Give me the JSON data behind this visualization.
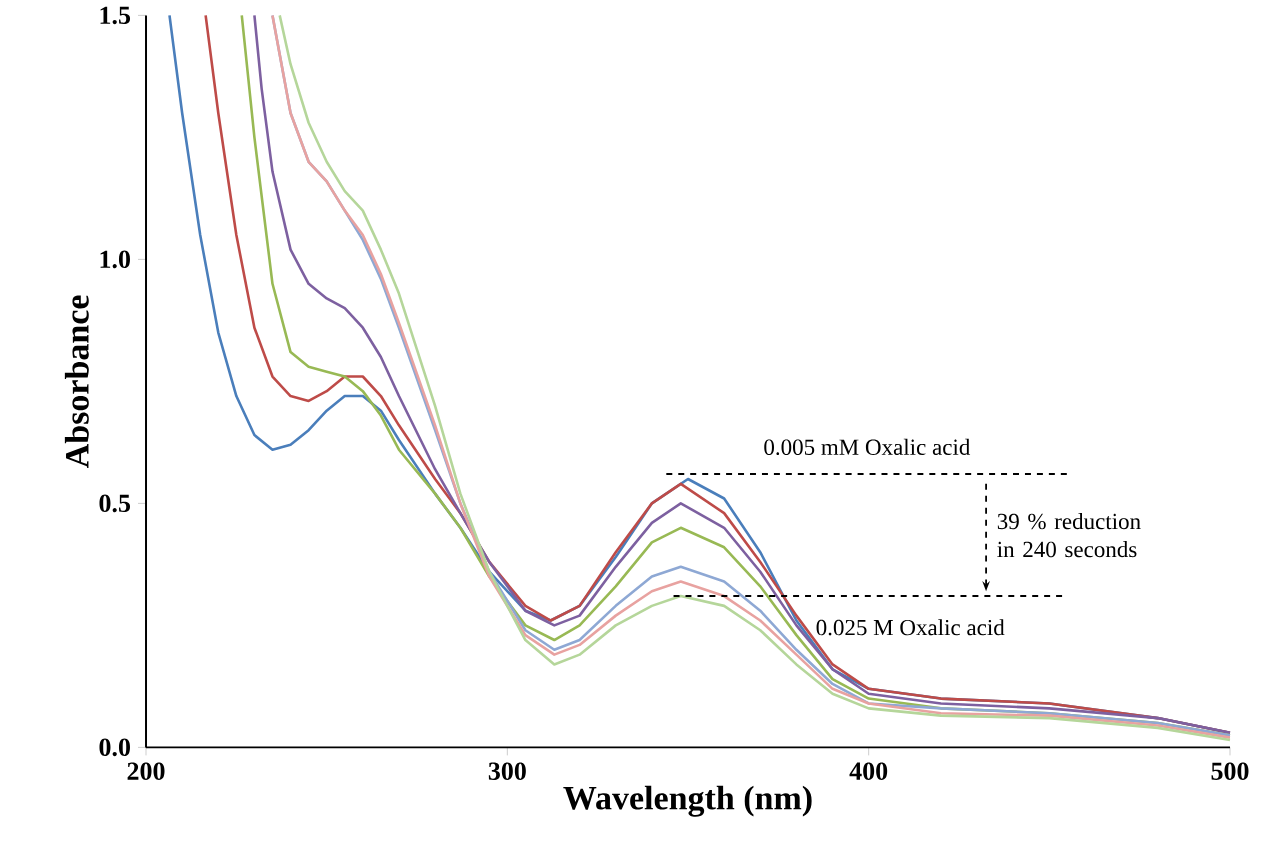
{
  "chart_data": {
    "type": "line",
    "xlabel": "Wavelength (nm)",
    "ylabel": "Absorbance",
    "xlim": [
      200,
      500
    ],
    "ylim": [
      0,
      1.5
    ],
    "xticks": [
      200,
      300,
      400,
      500
    ],
    "yticks": [
      {
        "value": 0,
        "label": "0.0"
      },
      {
        "value": 0.5,
        "label": "0.5"
      },
      {
        "value": 1,
        "label": "1.0"
      },
      {
        "value": 1.5,
        "label": "1.5"
      }
    ],
    "line_style": "solid",
    "series": [
      {
        "color": "#4a7ebb",
        "x": [
          206.5,
          210,
          215,
          220,
          225,
          230,
          235,
          240,
          245,
          250,
          255,
          260,
          265,
          270,
          280,
          287,
          295,
          305,
          312,
          320,
          330,
          340,
          350,
          360,
          370,
          380,
          390,
          400,
          420,
          450,
          480,
          500
        ],
        "values": [
          1.5,
          1.3,
          1.05,
          0.85,
          0.72,
          0.64,
          0.61,
          0.62,
          0.65,
          0.69,
          0.72,
          0.72,
          0.69,
          0.63,
          0.52,
          0.45,
          0.36,
          0.28,
          0.26,
          0.29,
          0.39,
          0.5,
          0.55,
          0.51,
          0.4,
          0.26,
          0.16,
          0.12,
          0.1,
          0.09,
          0.06,
          0.03
        ]
      },
      {
        "color": "#be4b48",
        "x": [
          216.5,
          220,
          225,
          230,
          235,
          240,
          245,
          250,
          255,
          260,
          265,
          270,
          280,
          287,
          295,
          305,
          312,
          320,
          330,
          340,
          348,
          360,
          370,
          380,
          390,
          400,
          420,
          450,
          480,
          500
        ],
        "values": [
          1.5,
          1.3,
          1.05,
          0.86,
          0.76,
          0.72,
          0.71,
          0.73,
          0.76,
          0.76,
          0.72,
          0.66,
          0.55,
          0.48,
          0.38,
          0.29,
          0.26,
          0.29,
          0.4,
          0.5,
          0.54,
          0.48,
          0.38,
          0.27,
          0.17,
          0.12,
          0.1,
          0.09,
          0.06,
          0.03
        ]
      },
      {
        "color": "#7d60a0",
        "x": [
          230,
          232,
          235,
          240,
          245,
          250,
          255,
          260,
          265,
          270,
          280,
          287,
          295,
          305,
          313,
          320,
          330,
          340,
          348,
          360,
          370,
          380,
          390,
          400,
          420,
          450,
          480,
          500
        ],
        "values": [
          1.5,
          1.35,
          1.18,
          1.02,
          0.95,
          0.92,
          0.9,
          0.86,
          0.8,
          0.72,
          0.57,
          0.48,
          0.38,
          0.28,
          0.25,
          0.27,
          0.37,
          0.46,
          0.5,
          0.45,
          0.36,
          0.25,
          0.16,
          0.11,
          0.09,
          0.08,
          0.06,
          0.03
        ]
      },
      {
        "color": "#98b954",
        "x": [
          226.5,
          230,
          235,
          240,
          245,
          250,
          255,
          260,
          265,
          270,
          280,
          287,
          295,
          305,
          313,
          320,
          330,
          340,
          348,
          360,
          370,
          380,
          390,
          400,
          420,
          450,
          480,
          500
        ],
        "values": [
          1.5,
          1.25,
          0.95,
          0.81,
          0.78,
          0.77,
          0.76,
          0.73,
          0.68,
          0.61,
          0.52,
          0.45,
          0.35,
          0.25,
          0.22,
          0.25,
          0.33,
          0.42,
          0.45,
          0.41,
          0.33,
          0.23,
          0.14,
          0.1,
          0.08,
          0.07,
          0.05,
          0.025
        ]
      },
      {
        "color": "#8ea8d4",
        "x": [
          235,
          240,
          245,
          250,
          255,
          260,
          265,
          270,
          280,
          287,
          295,
          305,
          313,
          320,
          330,
          340,
          348,
          360,
          370,
          380,
          390,
          400,
          420,
          450,
          480,
          500
        ],
        "values": [
          1.5,
          1.3,
          1.2,
          1.16,
          1.1,
          1.04,
          0.96,
          0.86,
          0.65,
          0.5,
          0.36,
          0.24,
          0.2,
          0.22,
          0.29,
          0.35,
          0.37,
          0.34,
          0.28,
          0.2,
          0.13,
          0.09,
          0.08,
          0.07,
          0.05,
          0.025
        ]
      },
      {
        "color": "#e8a2a0",
        "x": [
          235,
          240,
          245,
          250,
          255,
          260,
          265,
          270,
          280,
          287,
          295,
          305,
          313,
          320,
          330,
          340,
          348,
          360,
          370,
          380,
          390,
          400,
          420,
          450,
          480,
          500
        ],
        "values": [
          1.5,
          1.3,
          1.2,
          1.16,
          1.1,
          1.05,
          0.97,
          0.87,
          0.66,
          0.5,
          0.35,
          0.23,
          0.19,
          0.21,
          0.27,
          0.32,
          0.34,
          0.31,
          0.26,
          0.19,
          0.12,
          0.09,
          0.07,
          0.065,
          0.045,
          0.02
        ]
      },
      {
        "color": "#b5d69a",
        "x": [
          237,
          240,
          245,
          250,
          255,
          260,
          265,
          270,
          280,
          287,
          295,
          305,
          313,
          320,
          330,
          340,
          348,
          360,
          370,
          380,
          390,
          400,
          420,
          450,
          480,
          500
        ],
        "values": [
          1.5,
          1.4,
          1.28,
          1.2,
          1.14,
          1.1,
          1.02,
          0.93,
          0.7,
          0.52,
          0.36,
          0.22,
          0.17,
          0.19,
          0.25,
          0.29,
          0.31,
          0.29,
          0.24,
          0.17,
          0.11,
          0.08,
          0.065,
          0.06,
          0.04,
          0.015
        ]
      }
    ],
    "ref_lines": [
      {
        "axis": "y",
        "value": 0.56,
        "label": "0.005 mM Oxalic acid",
        "line_style": "dashed",
        "color": "#000000"
      },
      {
        "axis": "y",
        "value": 0.31,
        "label": "0.025 M Oxalic acid",
        "line_style": "dashed",
        "color": "#000000"
      }
    ],
    "annotations": [
      "39 % reduction in 240 seconds"
    ]
  }
}
